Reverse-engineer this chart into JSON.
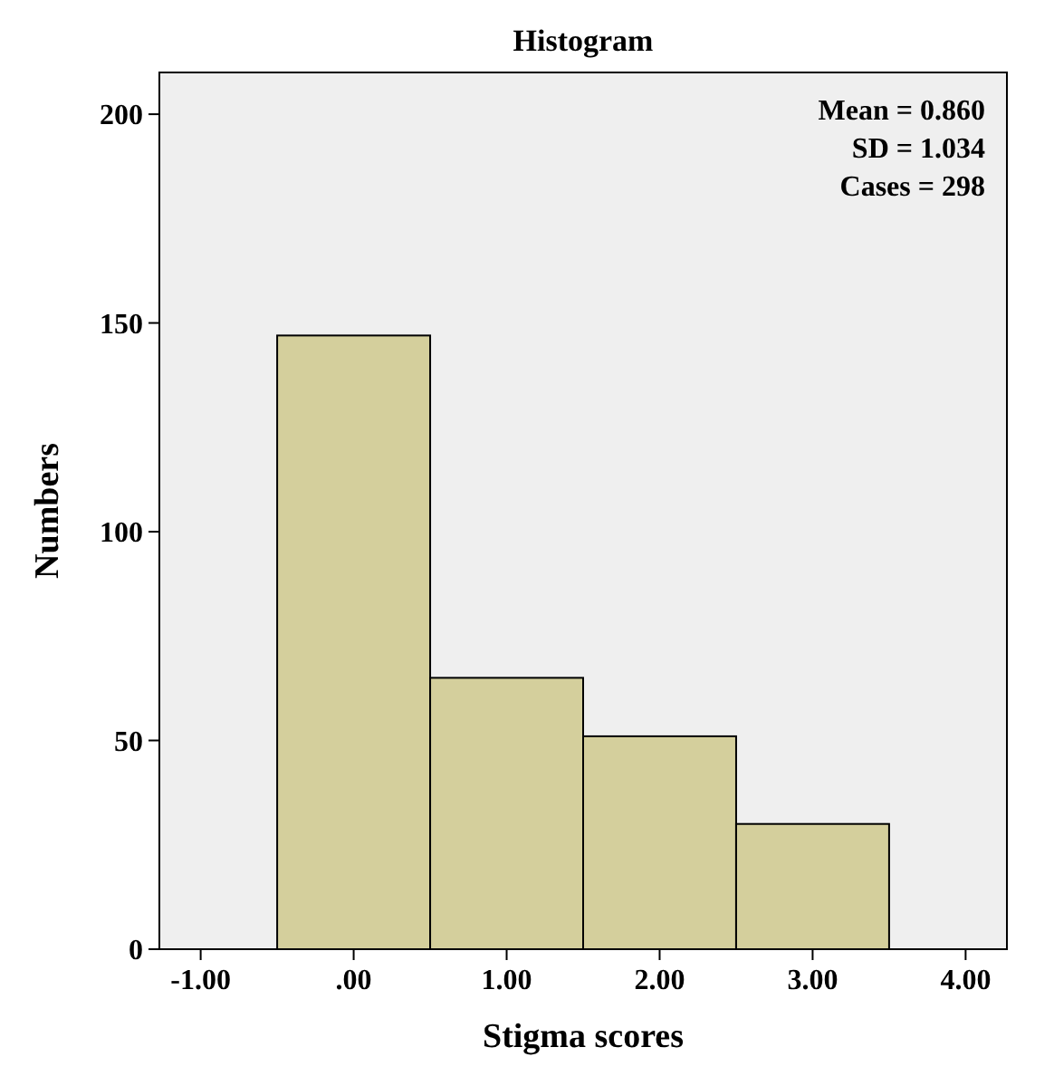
{
  "chart_data": {
    "type": "histogram",
    "title": "Histogram",
    "xlabel": "Stigma scores",
    "ylabel": "Numbers",
    "bins": [
      -0.5,
      0.5,
      1.5,
      2.5,
      3.5
    ],
    "values": [
      147,
      65,
      51,
      30
    ],
    "color": "#d4cf9c",
    "xlim": [
      -1.27,
      4.27
    ],
    "ylim": [
      0,
      210
    ],
    "xticks": [
      {
        "value": -1,
        "label": "-1.00"
      },
      {
        "value": 0,
        "label": ".00"
      },
      {
        "value": 1,
        "label": "1.00"
      },
      {
        "value": 2,
        "label": "2.00"
      },
      {
        "value": 3,
        "label": "3.00"
      },
      {
        "value": 4,
        "label": "4.00"
      }
    ],
    "yticks": [
      0,
      50,
      100,
      150,
      200
    ],
    "annotations": [
      "Mean = 0.860",
      "SD = 1.034",
      "Cases = 298"
    ],
    "grid": false
  }
}
